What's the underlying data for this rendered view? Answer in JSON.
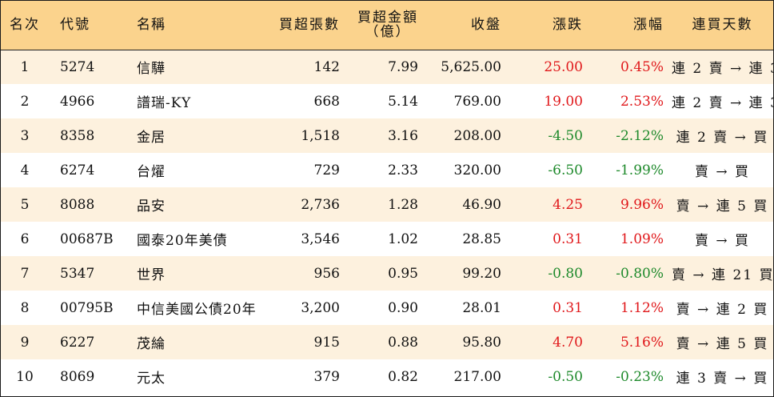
{
  "headers": {
    "rank": "名次",
    "code": "代號",
    "name": "名稱",
    "net_buy_shares": "買超張數",
    "net_buy_amount_line1": "買超金額",
    "net_buy_amount_line2": "（億）",
    "close": "收盤",
    "change": "漲跌",
    "change_pct": "漲幅",
    "consecutive_days": "連買天數"
  },
  "colors": {
    "header_bg": "#fbd38d",
    "odd_row_bg": "#fdf1de",
    "up": "#e0181b",
    "down": "#1f8a2c"
  },
  "rows": [
    {
      "rank": "1",
      "code": "5274",
      "name": "信驊",
      "shares": "142",
      "amount": "7.99",
      "close": "5,625.00",
      "change": "25.00",
      "pct": "0.45%",
      "days": "連 2 賣 → 連 3 買",
      "dir": "up"
    },
    {
      "rank": "2",
      "code": "4966",
      "name": "譜瑞-KY",
      "shares": "668",
      "amount": "5.14",
      "close": "769.00",
      "change": "19.00",
      "pct": "2.53%",
      "days": "連 2 賣 → 連 3 買",
      "dir": "up"
    },
    {
      "rank": "3",
      "code": "8358",
      "name": "金居",
      "shares": "1,518",
      "amount": "3.16",
      "close": "208.00",
      "change": "-4.50",
      "pct": "-2.12%",
      "days": "連 2 賣 → 買",
      "dir": "down"
    },
    {
      "rank": "4",
      "code": "6274",
      "name": "台燿",
      "shares": "729",
      "amount": "2.33",
      "close": "320.00",
      "change": "-6.50",
      "pct": "-1.99%",
      "days": "賣 → 買",
      "dir": "down"
    },
    {
      "rank": "5",
      "code": "8088",
      "name": "品安",
      "shares": "2,736",
      "amount": "1.28",
      "close": "46.90",
      "change": "4.25",
      "pct": "9.96%",
      "days": "賣 → 連 5 買",
      "dir": "up"
    },
    {
      "rank": "6",
      "code": "00687B",
      "name": "國泰20年美債",
      "shares": "3,546",
      "amount": "1.02",
      "close": "28.85",
      "change": "0.31",
      "pct": "1.09%",
      "days": "賣 → 買",
      "dir": "up"
    },
    {
      "rank": "7",
      "code": "5347",
      "name": "世界",
      "shares": "956",
      "amount": "0.95",
      "close": "99.20",
      "change": "-0.80",
      "pct": "-0.80%",
      "days": "賣 → 連 21 買",
      "dir": "down"
    },
    {
      "rank": "8",
      "code": "00795B",
      "name": "中信美國公債20年",
      "shares": "3,200",
      "amount": "0.90",
      "close": "28.01",
      "change": "0.31",
      "pct": "1.12%",
      "days": "賣 → 連 2 買",
      "dir": "up"
    },
    {
      "rank": "9",
      "code": "6227",
      "name": "茂綸",
      "shares": "915",
      "amount": "0.88",
      "close": "95.80",
      "change": "4.70",
      "pct": "5.16%",
      "days": "賣 → 連 5 買",
      "dir": "up"
    },
    {
      "rank": "10",
      "code": "8069",
      "name": "元太",
      "shares": "379",
      "amount": "0.82",
      "close": "217.00",
      "change": "-0.50",
      "pct": "-0.23%",
      "days": "連 3 賣 → 買",
      "dir": "down"
    }
  ]
}
